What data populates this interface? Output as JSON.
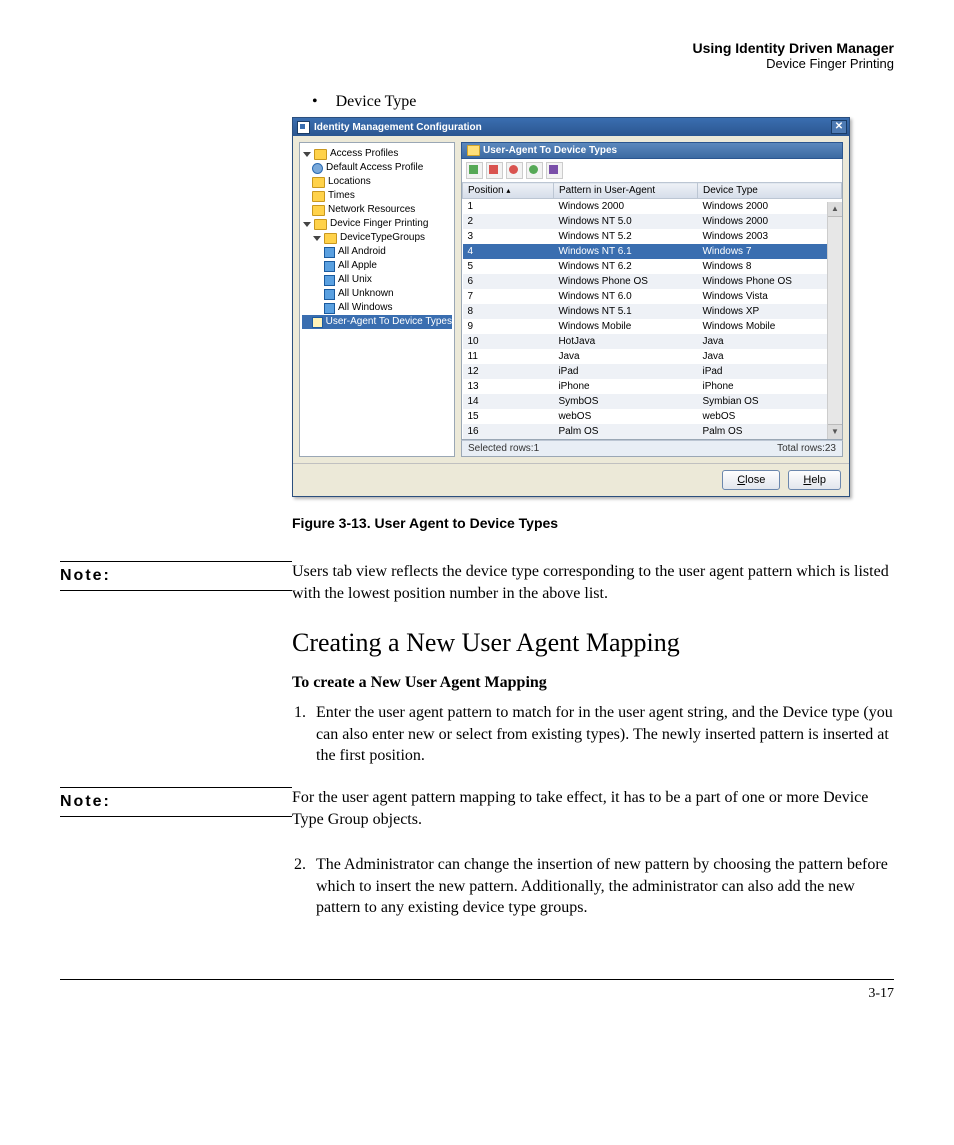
{
  "header": {
    "title": "Using Identity Driven Manager",
    "subtitle": "Device Finger Printing"
  },
  "bullet": "Device Type",
  "dialog": {
    "title": "Identity Management Configuration",
    "tree": {
      "access_profiles": "Access Profiles",
      "default_profile": "Default Access Profile",
      "locations": "Locations",
      "times": "Times",
      "network_resources": "Network Resources",
      "dfp": "Device Finger Printing",
      "dtg": "DeviceTypeGroups",
      "all_android": "All Android",
      "all_apple": "All Apple",
      "all_unix": "All Unix",
      "all_unknown": "All Unknown",
      "all_windows": "All Windows",
      "ua_to_dt": "User-Agent To Device Types"
    },
    "panel_title": "User-Agent To Device Types",
    "columns": {
      "c1": "Position",
      "c2": "Pattern in User-Agent",
      "c3": "Device Type"
    },
    "rows": [
      {
        "pos": "1",
        "pat": "Windows 2000",
        "dev": "Windows 2000"
      },
      {
        "pos": "2",
        "pat": "Windows NT 5.0",
        "dev": "Windows 2000"
      },
      {
        "pos": "3",
        "pat": "Windows NT 5.2",
        "dev": "Windows 2003"
      },
      {
        "pos": "4",
        "pat": "Windows NT 6.1",
        "dev": "Windows 7"
      },
      {
        "pos": "5",
        "pat": "Windows NT 6.2",
        "dev": "Windows 8"
      },
      {
        "pos": "6",
        "pat": "Windows Phone OS",
        "dev": "Windows Phone OS"
      },
      {
        "pos": "7",
        "pat": "Windows NT 6.0",
        "dev": "Windows Vista"
      },
      {
        "pos": "8",
        "pat": "Windows NT 5.1",
        "dev": "Windows XP"
      },
      {
        "pos": "9",
        "pat": "Windows Mobile",
        "dev": "Windows Mobile"
      },
      {
        "pos": "10",
        "pat": "HotJava",
        "dev": "Java"
      },
      {
        "pos": "11",
        "pat": "Java",
        "dev": "Java"
      },
      {
        "pos": "12",
        "pat": "iPad",
        "dev": "iPad"
      },
      {
        "pos": "13",
        "pat": "iPhone",
        "dev": "iPhone"
      },
      {
        "pos": "14",
        "pat": "SymbOS",
        "dev": "Symbian OS"
      },
      {
        "pos": "15",
        "pat": "webOS",
        "dev": "webOS"
      },
      {
        "pos": "16",
        "pat": "Palm OS",
        "dev": "Palm OS"
      }
    ],
    "status_left": "Selected rows:1",
    "status_right": "Total rows:23",
    "close_btn": "Close",
    "help_btn": "Help"
  },
  "caption": "Figure 3-13. User Agent to Device Types",
  "note_label": "Note:",
  "note1": "Users tab view reflects the device type corresponding to the user agent pattern which is listed with the lowest position number in the above list.",
  "section_heading": "Creating a New User Agent Mapping",
  "sub_heading": "To create a New User Agent Mapping",
  "step1": "Enter the user agent pattern to match for in the user agent string, and the Device type (you can also enter new or select from existing types). The newly inserted pattern is inserted at the first position.",
  "note2": "For the user agent pattern mapping to take effect, it has to be a part of one or more Device Type Group objects.",
  "step2": "The Administrator can change the insertion of new pattern by choosing the pattern before which to insert the new pattern. Additionally, the administrator can also add the new pattern to any existing device type groups.",
  "page_num": "3-17",
  "style": {
    "selected_row_index": 3,
    "accent": "#3a6eb0",
    "alt_row": "#eef1f6",
    "dialog_bg": "#ece9d8"
  }
}
